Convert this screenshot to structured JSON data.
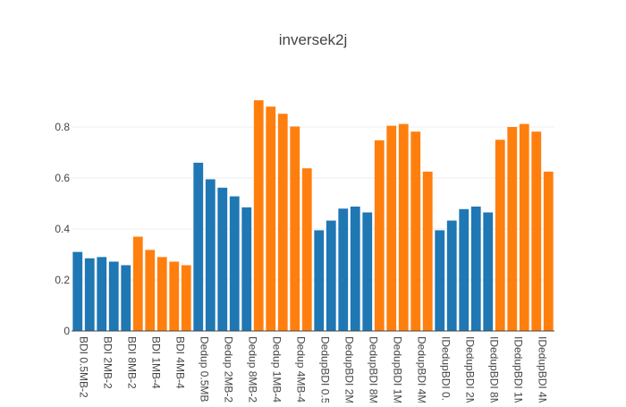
{
  "chart_data": {
    "type": "bar",
    "title": "inversek2j",
    "xlabel": "",
    "ylabel": "",
    "ylim": [
      0,
      0.95
    ],
    "yticks": [
      0,
      0.2,
      0.4,
      0.6,
      0.8
    ],
    "ytick_labels": [
      "0",
      "0.2",
      "0.4",
      "0.6",
      "0.8"
    ],
    "grid": true,
    "legend": "none",
    "colors": {
      "blue": "#1f77b4",
      "orange": "#ff7f0e"
    },
    "category_tick_labels": [
      "BDI 0.5MB-2",
      "BDI 2MB-2",
      "BDI 8MB-2",
      "BDI 1MB-4",
      "BDI 4MB-4",
      "Dedup 0.5MB",
      "Dedup 2MB-2",
      "Dedup 8MB-2",
      "Dedup 1MB-4",
      "Dedup 4MB-4",
      "DedupBDI 0.5",
      "DedupBDI 2M",
      "DedupBDI 8M",
      "DedupBDI 1M",
      "DedupBDI 4M",
      "IDedupBDI 0.",
      "IDedupBDI 2M",
      "IDedupBDI 8M",
      "IDedupBDI 1M",
      "IDedupBDI 4M"
    ],
    "bars": [
      {
        "value": 0.31,
        "color": "blue"
      },
      {
        "value": 0.285,
        "color": "blue"
      },
      {
        "value": 0.29,
        "color": "blue"
      },
      {
        "value": 0.272,
        "color": "blue"
      },
      {
        "value": 0.258,
        "color": "blue"
      },
      {
        "value": 0.37,
        "color": "orange"
      },
      {
        "value": 0.318,
        "color": "orange"
      },
      {
        "value": 0.29,
        "color": "orange"
      },
      {
        "value": 0.272,
        "color": "orange"
      },
      {
        "value": 0.258,
        "color": "orange"
      },
      {
        "value": 0.66,
        "color": "blue"
      },
      {
        "value": 0.595,
        "color": "blue"
      },
      {
        "value": 0.562,
        "color": "blue"
      },
      {
        "value": 0.528,
        "color": "blue"
      },
      {
        "value": 0.485,
        "color": "blue"
      },
      {
        "value": 0.905,
        "color": "orange"
      },
      {
        "value": 0.88,
        "color": "orange"
      },
      {
        "value": 0.852,
        "color": "orange"
      },
      {
        "value": 0.802,
        "color": "orange"
      },
      {
        "value": 0.638,
        "color": "orange"
      },
      {
        "value": 0.395,
        "color": "blue"
      },
      {
        "value": 0.433,
        "color": "blue"
      },
      {
        "value": 0.48,
        "color": "blue"
      },
      {
        "value": 0.488,
        "color": "blue"
      },
      {
        "value": 0.465,
        "color": "blue"
      },
      {
        "value": 0.748,
        "color": "orange"
      },
      {
        "value": 0.805,
        "color": "orange"
      },
      {
        "value": 0.812,
        "color": "orange"
      },
      {
        "value": 0.782,
        "color": "orange"
      },
      {
        "value": 0.625,
        "color": "orange"
      },
      {
        "value": 0.395,
        "color": "blue"
      },
      {
        "value": 0.433,
        "color": "blue"
      },
      {
        "value": 0.478,
        "color": "blue"
      },
      {
        "value": 0.488,
        "color": "blue"
      },
      {
        "value": 0.465,
        "color": "blue"
      },
      {
        "value": 0.75,
        "color": "orange"
      },
      {
        "value": 0.8,
        "color": "orange"
      },
      {
        "value": 0.812,
        "color": "orange"
      },
      {
        "value": 0.782,
        "color": "orange"
      },
      {
        "value": 0.625,
        "color": "orange"
      }
    ]
  }
}
